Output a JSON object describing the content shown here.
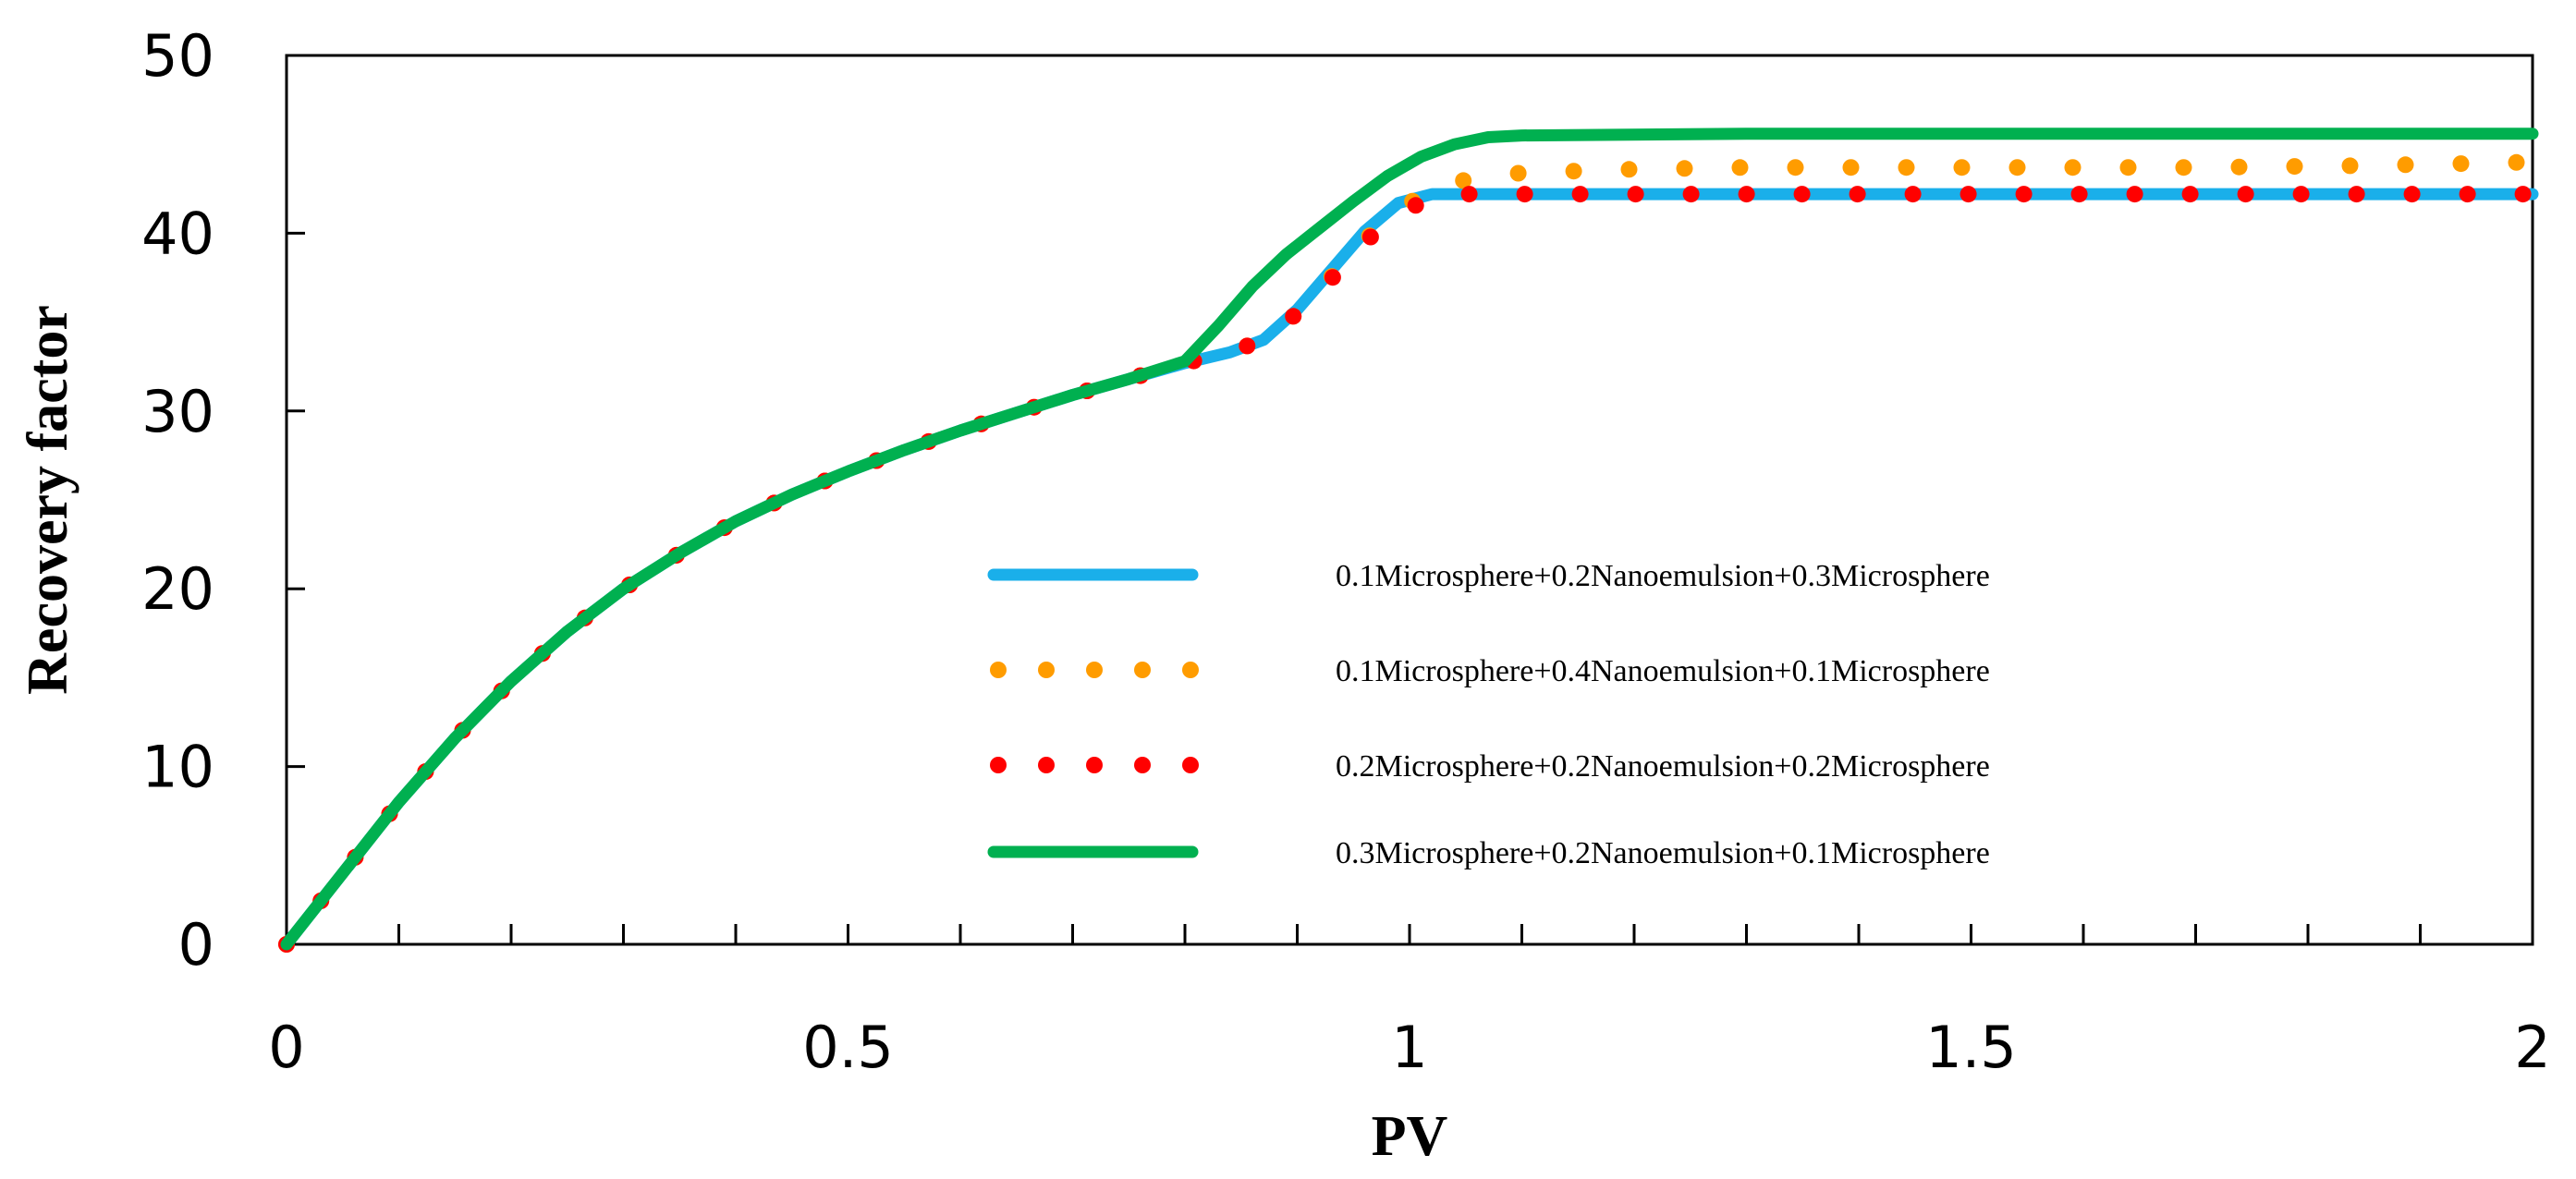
{
  "chart_data": {
    "type": "line",
    "xlabel": "PV",
    "ylabel": "Recovery factor",
    "xlim": [
      0,
      2
    ],
    "ylim": [
      0,
      50
    ],
    "x_ticks": [
      "0",
      "0.5",
      "1",
      "1.5",
      "2"
    ],
    "y_ticks": [
      "0",
      "10",
      "20",
      "30",
      "40",
      "50"
    ],
    "x_minor_step": 0.1,
    "grid": false,
    "legend_position": "center-right",
    "series": [
      {
        "name": "0.1Microsphere+0.2Nanoemulsion+0.3Microsphere",
        "style": "solid",
        "color": "#1AAFEA",
        "points": [
          [
            0,
            0
          ],
          [
            0.05,
            4
          ],
          [
            0.1,
            8
          ],
          [
            0.15,
            11.6
          ],
          [
            0.2,
            14.8
          ],
          [
            0.25,
            17.6
          ],
          [
            0.3,
            20
          ],
          [
            0.35,
            22
          ],
          [
            0.4,
            23.8
          ],
          [
            0.45,
            25.3
          ],
          [
            0.5,
            26.6
          ],
          [
            0.55,
            27.8
          ],
          [
            0.6,
            28.9
          ],
          [
            0.65,
            29.9
          ],
          [
            0.7,
            30.9
          ],
          [
            0.75,
            31.8
          ],
          [
            0.8,
            32.7
          ],
          [
            0.84,
            33.3
          ],
          [
            0.87,
            34
          ],
          [
            0.9,
            35.7
          ],
          [
            0.93,
            37.9
          ],
          [
            0.96,
            40.1
          ],
          [
            0.99,
            41.7
          ],
          [
            1.02,
            42.2
          ],
          [
            1.1,
            42.2
          ],
          [
            1.3,
            42.2
          ],
          [
            1.5,
            42.2
          ],
          [
            1.7,
            42.2
          ],
          [
            2.0,
            42.2
          ]
        ]
      },
      {
        "name": "0.1Microsphere+0.4Nanoemulsion+0.1Microsphere",
        "style": "dotted",
        "color": "#FF9C00",
        "points": [
          [
            0,
            0
          ],
          [
            0.05,
            4
          ],
          [
            0.1,
            8
          ],
          [
            0.15,
            11.6
          ],
          [
            0.2,
            14.8
          ],
          [
            0.25,
            17.6
          ],
          [
            0.3,
            20
          ],
          [
            0.35,
            22
          ],
          [
            0.4,
            23.8
          ],
          [
            0.45,
            25.3
          ],
          [
            0.5,
            26.6
          ],
          [
            0.55,
            27.8
          ],
          [
            0.6,
            28.9
          ],
          [
            0.65,
            29.9
          ],
          [
            0.7,
            30.9
          ],
          [
            0.75,
            31.8
          ],
          [
            0.8,
            32.7
          ],
          [
            0.84,
            33.3
          ],
          [
            0.87,
            34
          ],
          [
            0.9,
            35.5
          ],
          [
            0.93,
            37.5
          ],
          [
            0.96,
            39.6
          ],
          [
            0.99,
            41.3
          ],
          [
            1.02,
            42.5
          ],
          [
            1.05,
            43
          ],
          [
            1.1,
            43.4
          ],
          [
            1.2,
            43.6
          ],
          [
            1.3,
            43.7
          ],
          [
            1.5,
            43.7
          ],
          [
            1.7,
            43.7
          ],
          [
            1.85,
            43.8
          ],
          [
            2.0,
            44
          ]
        ]
      },
      {
        "name": "0.2Microsphere+0.2Nanoemulsion+0.2Microsphere",
        "style": "dotted",
        "color": "#FF0000",
        "points": [
          [
            0,
            0
          ],
          [
            0.05,
            4
          ],
          [
            0.1,
            8
          ],
          [
            0.15,
            11.6
          ],
          [
            0.2,
            14.8
          ],
          [
            0.25,
            17.6
          ],
          [
            0.3,
            20
          ],
          [
            0.35,
            22
          ],
          [
            0.4,
            23.8
          ],
          [
            0.45,
            25.3
          ],
          [
            0.5,
            26.6
          ],
          [
            0.55,
            27.8
          ],
          [
            0.6,
            28.9
          ],
          [
            0.65,
            29.9
          ],
          [
            0.7,
            30.9
          ],
          [
            0.75,
            31.8
          ],
          [
            0.8,
            32.7
          ],
          [
            0.84,
            33.3
          ],
          [
            0.87,
            34
          ],
          [
            0.9,
            35.5
          ],
          [
            0.93,
            37.4
          ],
          [
            0.96,
            39.5
          ],
          [
            0.99,
            41.1
          ],
          [
            1.02,
            42
          ],
          [
            1.05,
            42.2
          ],
          [
            1.1,
            42.2
          ],
          [
            1.3,
            42.2
          ],
          [
            1.5,
            42.2
          ],
          [
            1.7,
            42.2
          ],
          [
            2.0,
            42.2
          ]
        ]
      },
      {
        "name": "0.3Microsphere+0.2Nanoemulsion+0.1Microsphere",
        "style": "solid",
        "color": "#00B050",
        "points": [
          [
            0,
            0
          ],
          [
            0.05,
            4
          ],
          [
            0.1,
            8
          ],
          [
            0.15,
            11.6
          ],
          [
            0.2,
            14.8
          ],
          [
            0.25,
            17.6
          ],
          [
            0.3,
            20
          ],
          [
            0.35,
            22
          ],
          [
            0.4,
            23.8
          ],
          [
            0.45,
            25.3
          ],
          [
            0.5,
            26.6
          ],
          [
            0.55,
            27.8
          ],
          [
            0.6,
            28.9
          ],
          [
            0.65,
            29.9
          ],
          [
            0.7,
            30.9
          ],
          [
            0.75,
            31.8
          ],
          [
            0.8,
            32.8
          ],
          [
            0.83,
            34.8
          ],
          [
            0.86,
            37
          ],
          [
            0.89,
            38.8
          ],
          [
            0.92,
            40.3
          ],
          [
            0.95,
            41.8
          ],
          [
            0.98,
            43.2
          ],
          [
            1.01,
            44.3
          ],
          [
            1.04,
            45
          ],
          [
            1.07,
            45.4
          ],
          [
            1.1,
            45.5
          ],
          [
            1.3,
            45.6
          ],
          [
            1.5,
            45.6
          ],
          [
            1.7,
            45.6
          ],
          [
            2.0,
            45.6
          ]
        ]
      }
    ]
  }
}
